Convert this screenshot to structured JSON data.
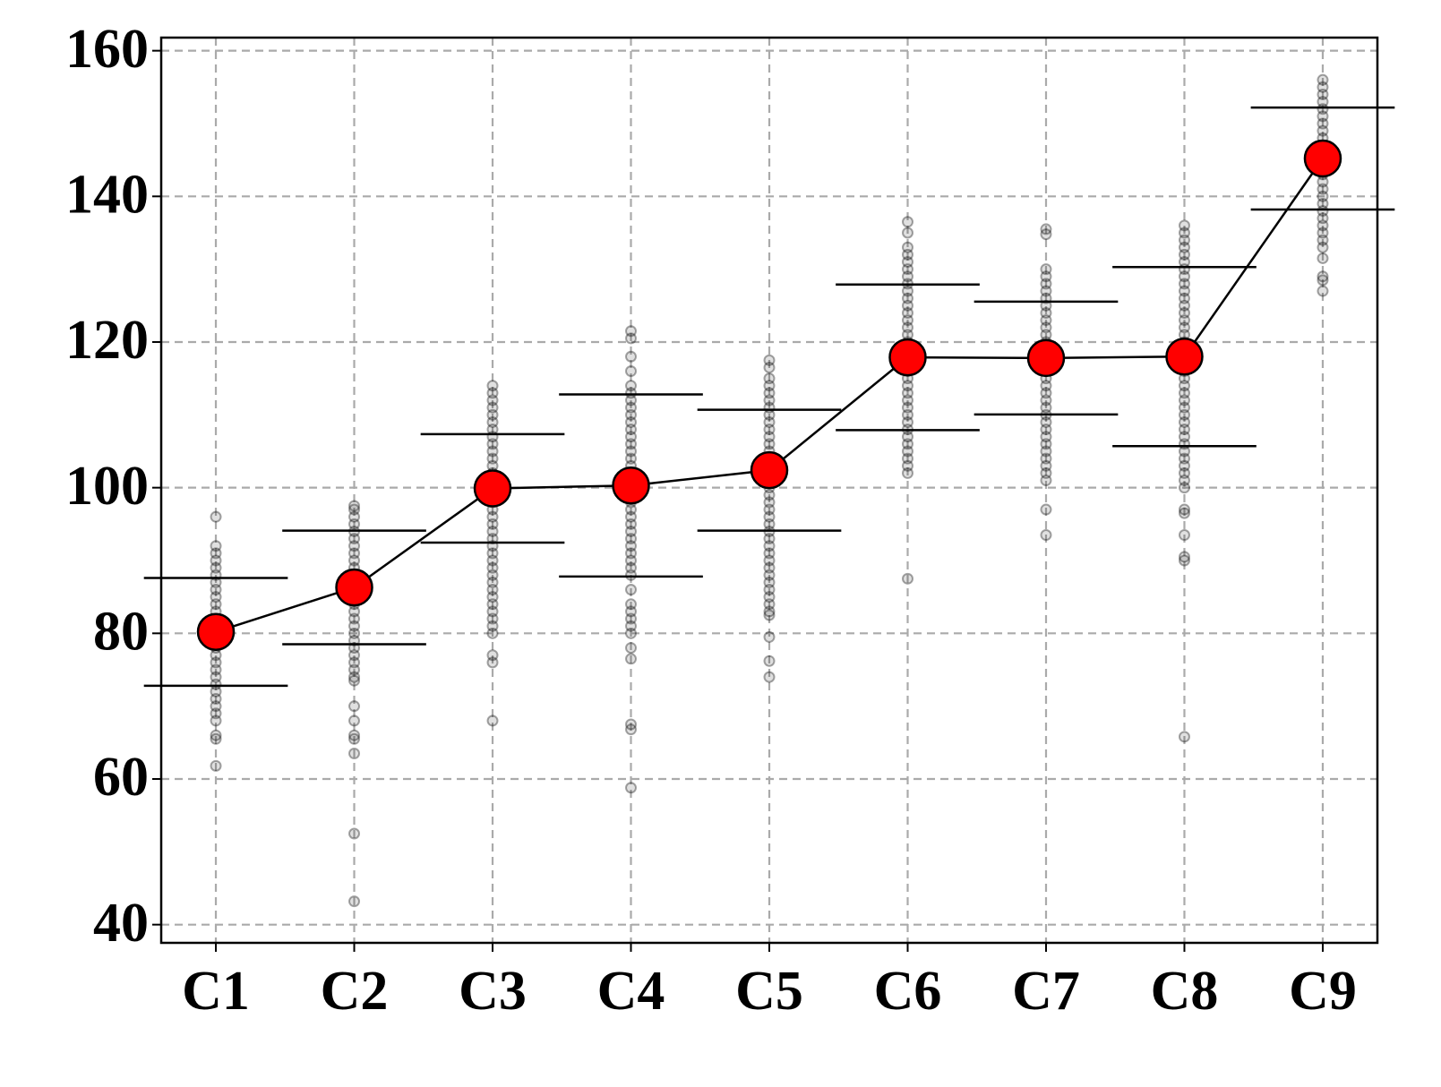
{
  "chart_data": {
    "type": "line",
    "categories": [
      "C1",
      "C2",
      "C3",
      "C4",
      "C5",
      "C6",
      "C7",
      "C8",
      "C9"
    ],
    "values": [
      80.2,
      86.3,
      99.9,
      100.3,
      102.4,
      117.9,
      117.8,
      118.0,
      145.2
    ],
    "errors": [
      7.4,
      7.8,
      7.45,
      12.5,
      8.3,
      10.0,
      7.75,
      12.3,
      7.0
    ],
    "color": "#ff0000",
    "points": [
      [
        96,
        92,
        91,
        90,
        89,
        88,
        87,
        86,
        85,
        84,
        83,
        82,
        81,
        80,
        79,
        78,
        77,
        76,
        75,
        74,
        73,
        72,
        71,
        70,
        69,
        68,
        66,
        65.5,
        61.8
      ],
      [
        97.5,
        97,
        96,
        95,
        94,
        93,
        92,
        91,
        90,
        89,
        88,
        87,
        86,
        85,
        84,
        83,
        82,
        81,
        80,
        79,
        78,
        77,
        76,
        75,
        74,
        73.5,
        70,
        68,
        66,
        65.5,
        63.5,
        52.5,
        43.2
      ],
      [
        114,
        113,
        112,
        111,
        110,
        109,
        108,
        107,
        106,
        105,
        104,
        103,
        102,
        101,
        100,
        99,
        98,
        97,
        96,
        95,
        94,
        93,
        92,
        91,
        90,
        89,
        88,
        87,
        86,
        85,
        84,
        83,
        82,
        81,
        80,
        77,
        76,
        68
      ],
      [
        121.5,
        120.5,
        118,
        116,
        114,
        113,
        112,
        111,
        110,
        109,
        108,
        107,
        106,
        105,
        104,
        103,
        102,
        101,
        100,
        99,
        98,
        97,
        96,
        95,
        94,
        93,
        92,
        91,
        90,
        89,
        88,
        86,
        84,
        83,
        82,
        81,
        80,
        78,
        76.5,
        67.5,
        66.8,
        58.8
      ],
      [
        117.5,
        116.5,
        115,
        114,
        113,
        112,
        111,
        110,
        109,
        108,
        107,
        106,
        105,
        104,
        103,
        102,
        101,
        100,
        99,
        98,
        97,
        96,
        95,
        94,
        93,
        92,
        91,
        90,
        89,
        88,
        87,
        86,
        85,
        84,
        83,
        82.5,
        79.5,
        76.2,
        74.0
      ],
      [
        136.5,
        135,
        133,
        132,
        131,
        130,
        129,
        128,
        127,
        126,
        125,
        124,
        123,
        122,
        121,
        120,
        119,
        118,
        117,
        116,
        115,
        114,
        113,
        112,
        111,
        110,
        109,
        108,
        107,
        106,
        105,
        104,
        103,
        102,
        87.5
      ],
      [
        135.5,
        134.8,
        130,
        129,
        128,
        127,
        126,
        125,
        124,
        123,
        122,
        121,
        120,
        119,
        118,
        117,
        116,
        115,
        114,
        113,
        112,
        111,
        110,
        109,
        108,
        107,
        106,
        105,
        104,
        103,
        102,
        101,
        97,
        93.5
      ],
      [
        136,
        135,
        134,
        133,
        132,
        131,
        130,
        129,
        128,
        127,
        126,
        125,
        124,
        123,
        122,
        121,
        120,
        119,
        118,
        117,
        116,
        115,
        114,
        113,
        112,
        111,
        110,
        109,
        108,
        107,
        106,
        105,
        104,
        103,
        102,
        101,
        100,
        97,
        96.5,
        93.5,
        90.5,
        90,
        65.8
      ],
      [
        156,
        155,
        154,
        153,
        152,
        151,
        150,
        149,
        148,
        147,
        146,
        145,
        144,
        143,
        142,
        141,
        140,
        139,
        138,
        137,
        136,
        135,
        134,
        133,
        131.5,
        129,
        128.5,
        127
      ]
    ],
    "ylim": [
      37.5,
      161.8
    ],
    "yticks": [
      40,
      60,
      80,
      100,
      120,
      140,
      160
    ],
    "grid": true
  }
}
